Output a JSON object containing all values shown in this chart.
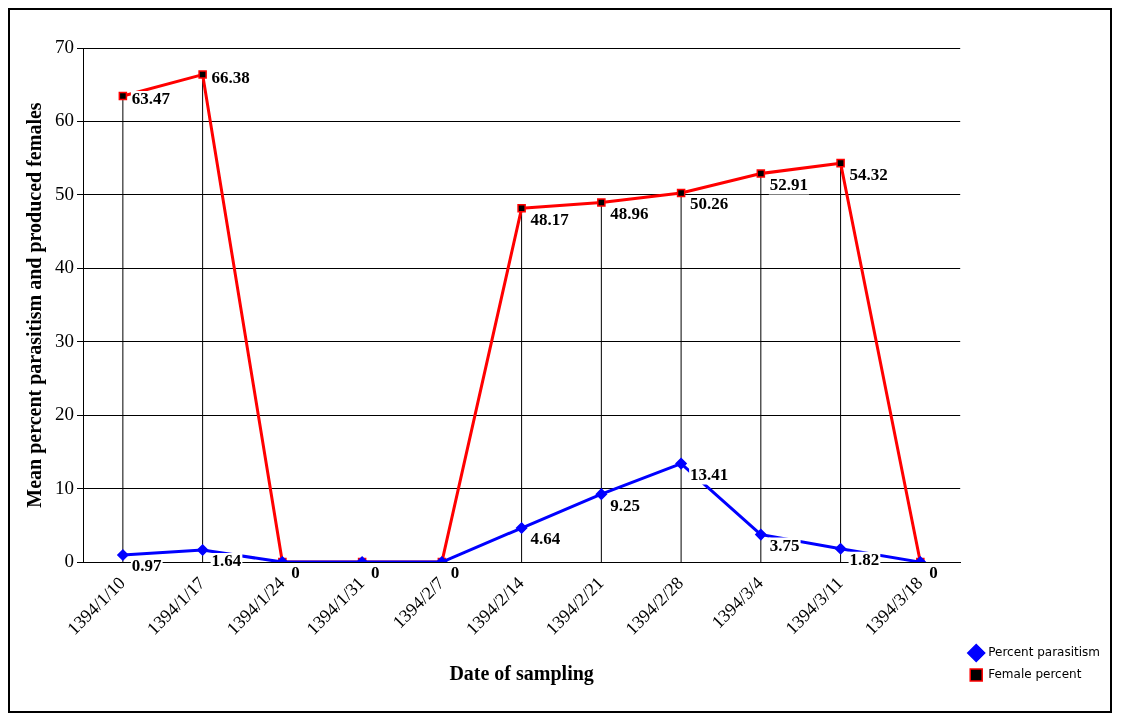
{
  "chart_data": {
    "type": "line",
    "xlabel": "Date of sampling",
    "ylabel": "Mean percent parasitism and produced females",
    "categories": [
      "1394/1/10",
      "1394/1/17",
      "1394/1/24",
      "1394/1/31",
      "1394/2/7",
      "1394/2/14",
      "1394/2/21",
      "1394/2/28",
      "1394/3/4",
      "1394/3/11",
      "1394/3/18"
    ],
    "series": [
      {
        "name": "Percent parasitism",
        "color": "#0000ff",
        "marker": "diamond",
        "values": [
          0.97,
          1.64,
          0,
          0,
          0,
          4.64,
          9.25,
          13.41,
          3.75,
          1.82,
          0
        ],
        "value_labels": [
          "0.97",
          "1.64",
          "0",
          "0",
          "0",
          "4.64",
          "9.25",
          "13.41",
          "3.75",
          "1.82",
          "0"
        ]
      },
      {
        "name": "Female percent",
        "color": "#ff0000",
        "marker": "square",
        "values": [
          63.47,
          66.38,
          0,
          0,
          0,
          48.17,
          48.96,
          50.26,
          52.91,
          54.32,
          0
        ],
        "value_labels": [
          "63.47",
          "66.38",
          null,
          null,
          null,
          "48.17",
          "48.96",
          "50.26",
          "52.91",
          "54.32",
          null
        ]
      }
    ],
    "ylim": [
      0,
      70
    ],
    "yticks": [
      0,
      10,
      20,
      30,
      40,
      50,
      60,
      70
    ],
    "grid": "y",
    "legend": "right"
  }
}
